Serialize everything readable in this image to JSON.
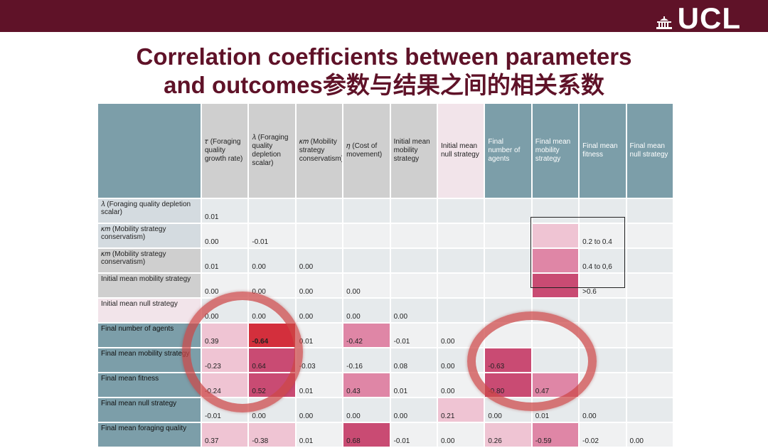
{
  "header": {
    "logo_text": "UCL",
    "logo_icon": "ucl-portico-icon"
  },
  "title": {
    "line1": "Correlation coefficients between parameters",
    "line2_en": "and outcomes",
    "line2_zh": "参数与结果之间的相关系数"
  },
  "table": {
    "columns": [
      {
        "label": "𝜏 (Foraging quality growth rate)",
        "style": "grey"
      },
      {
        "label": "𝜆 (Foraging quality depletion scalar)",
        "style": "grey"
      },
      {
        "label": "𝜅𝑚 (Mobility strategy conservatism)",
        "style": "grey"
      },
      {
        "label": "𝜂 (Cost of movement)",
        "style": "grey"
      },
      {
        "label": "Initial mean mobility strategy",
        "style": "grey"
      },
      {
        "label": "Initial mean null strategy",
        "style": "pink"
      },
      {
        "label": "Final number of agents",
        "style": "teal"
      },
      {
        "label": "Final mean mobility strategy",
        "style": "teal"
      },
      {
        "label": "Final mean fitness",
        "style": "teal"
      },
      {
        "label": "Final mean null strategy",
        "style": "teal"
      }
    ],
    "rows": [
      {
        "label": "𝜆 (Foraging quality depletion scalar)",
        "style": "light",
        "cells": [
          "0.01",
          "",
          "",
          "",
          "",
          "",
          "",
          "",
          "",
          ""
        ]
      },
      {
        "label": "𝜅𝑚 (Mobility strategy conservatism)",
        "style": "light",
        "cells": [
          "0.00",
          "-0.01",
          "",
          "",
          "",
          "",
          "",
          "",
          "0.2 to 0.4",
          ""
        ]
      },
      {
        "label": "𝜅𝑚 (Mobility strategy conservatism)",
        "style": "grey",
        "cells": [
          "0.01",
          "0.00",
          "0.00",
          "",
          "",
          "",
          "",
          "",
          "0.4 to 0,6",
          ""
        ]
      },
      {
        "label": "Initial mean mobility strategy",
        "style": "grey",
        "cells": [
          "0.00",
          "0.00",
          "0.00",
          "0.00",
          "",
          "",
          "",
          "",
          ">0.6",
          ""
        ]
      },
      {
        "label": "Initial mean null strategy",
        "style": "pink",
        "cells": [
          "0.00",
          "0.00",
          "0.00",
          "0.00",
          "0.00",
          "",
          "",
          "",
          "",
          ""
        ]
      },
      {
        "label": "Final number of agents",
        "style": "teal",
        "cells": [
          "0.39",
          "-0.64",
          "0.01",
          "-0.42",
          "-0.01",
          "0.00",
          "",
          "",
          "",
          ""
        ]
      },
      {
        "label": "Final mean mobility strategy",
        "style": "teal",
        "cells": [
          "-0.23",
          "0.64",
          "-0.03",
          "-0.16",
          "0.08",
          "0.00",
          "-0.63",
          "",
          "",
          ""
        ]
      },
      {
        "label": "Final mean fitness",
        "style": "teal",
        "cells": [
          "-0.24",
          "0.52",
          "0.01",
          "0.43",
          "0.01",
          "0.00",
          "-0.80",
          "0.47",
          "",
          ""
        ]
      },
      {
        "label": "Final mean null strategy",
        "style": "teal",
        "cells": [
          "-0.01",
          "0.00",
          "0.00",
          "0.00",
          "0.00",
          "0.21",
          "0.00",
          "0.01",
          "0.00",
          ""
        ]
      },
      {
        "label": "Final mean foraging quality",
        "style": "teal",
        "cells": [
          "0.37",
          "-0.38",
          "0.01",
          "0.68",
          "-0.01",
          "0.00",
          "0.26",
          "-0.59",
          "-0.02",
          "0.00"
        ]
      }
    ],
    "highlights": [
      [
        "",
        "",
        "",
        "",
        "",
        "",
        "",
        "",
        "",
        ""
      ],
      [
        "",
        "",
        "",
        "",
        "",
        "",
        "",
        "p1",
        "",
        ""
      ],
      [
        "",
        "",
        "",
        "",
        "",
        "",
        "",
        "p2",
        "",
        ""
      ],
      [
        "",
        "",
        "",
        "",
        "",
        "",
        "",
        "p3",
        "",
        ""
      ],
      [
        "",
        "",
        "",
        "",
        "",
        "",
        "",
        "",
        "",
        ""
      ],
      [
        "p1",
        "p3",
        "",
        "p2",
        "",
        "",
        "",
        "",
        "",
        ""
      ],
      [
        "p1",
        "p3",
        "",
        "",
        "",
        "",
        "p3",
        "",
        "",
        ""
      ],
      [
        "p1",
        "p3",
        "",
        "p2",
        "",
        "",
        "p3",
        "p2",
        "",
        ""
      ],
      [
        "",
        "",
        "",
        "",
        "",
        "p1",
        "",
        "",
        "",
        ""
      ],
      [
        "p1",
        "p1",
        "",
        "p3",
        "",
        "",
        "p1",
        "p2",
        "",
        ""
      ]
    ],
    "colors": {
      "header_teal": "#7c9ea9",
      "header_grey": "#cfcfcf",
      "header_pink": "#f2e4ea",
      "low": "#efc4d3",
      "mid": "#df86a6",
      "high": "#c94b73",
      "ring": "#cd4646",
      "brand": "#5f1228"
    }
  }
}
